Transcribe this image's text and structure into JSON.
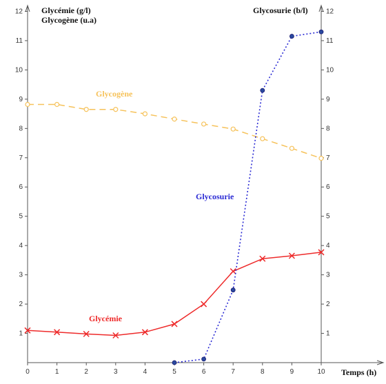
{
  "chart_data": {
    "type": "line",
    "left_axis_title_line1": "Glycémie (g/l)",
    "left_axis_title_line2": "Glycogène  (u.a)",
    "right_axis_title": "Glycosurie  (b/l)",
    "xlabel": "Temps (h)",
    "xlim": [
      0,
      12.2
    ],
    "ylim": [
      0,
      12.2
    ],
    "x_ticks": [
      "0",
      "1",
      "2",
      "3",
      "4",
      "5",
      "6",
      "7",
      "8",
      "9",
      "10"
    ],
    "y_ticks": [
      "1",
      "2",
      "3",
      "4",
      "5",
      "6",
      "7",
      "8",
      "9",
      "10",
      "11",
      "12"
    ],
    "series": [
      {
        "name": "Glycogène",
        "color": "#f6c25a",
        "style": "dashed",
        "marker": "circle-open",
        "x": [
          0,
          1,
          2,
          3,
          4,
          5,
          6,
          7,
          8,
          9,
          10
        ],
        "y": [
          8.82,
          8.82,
          8.65,
          8.65,
          8.5,
          8.32,
          8.15,
          7.98,
          7.65,
          7.32,
          6.98
        ]
      },
      {
        "name": "Glycémie",
        "color": "#ee2a2a",
        "style": "solid",
        "marker": "x",
        "x": [
          0,
          1,
          2,
          3,
          4,
          5,
          6,
          7,
          8,
          9,
          10
        ],
        "y": [
          1.1,
          1.04,
          0.98,
          0.93,
          1.04,
          1.32,
          2.0,
          3.12,
          3.55,
          3.65,
          3.77
        ]
      },
      {
        "name": "Glycosurie",
        "color": "#2a2ad4",
        "style": "dotted",
        "marker": "dot",
        "x": [
          5,
          6,
          7,
          8,
          9,
          10
        ],
        "y": [
          0,
          0.12,
          2.48,
          9.3,
          11.15,
          11.3
        ]
      }
    ],
    "grid": false,
    "legend": "none"
  }
}
